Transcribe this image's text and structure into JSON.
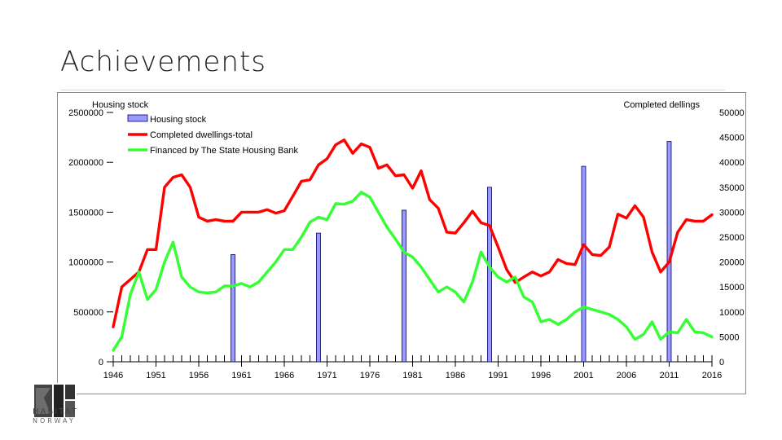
{
  "slide": {
    "title": "Achievements"
  },
  "logo": {
    "line1": "HABITAT",
    "line2": "NORWAY"
  },
  "chart_data": {
    "type": "bar+line",
    "left_axis_title": "Housing stock",
    "right_axis_title": "Completed dellings",
    "left_ylim": [
      0,
      2500000
    ],
    "right_ylim": [
      0,
      50000
    ],
    "left_ticks": [
      "0",
      "500000",
      "1000000",
      "1500000",
      "2000000",
      "2500000"
    ],
    "right_ticks": [
      "0",
      "5000",
      "10000",
      "15000",
      "20000",
      "25000",
      "30000",
      "35000",
      "40000",
      "45000",
      "50000"
    ],
    "x_tick_labels": [
      "1946",
      "1951",
      "1956",
      "1961",
      "1966",
      "1971",
      "1976",
      "1981",
      "1986",
      "1991",
      "1996",
      "2001",
      "2006",
      "2011",
      "2016"
    ],
    "xlim": [
      1946,
      2016
    ],
    "legend": [
      {
        "name": "Housing stock",
        "color": "#9999ff",
        "kind": "bar"
      },
      {
        "name": "Completed dwellings-total",
        "color": "#ff0000",
        "kind": "line"
      },
      {
        "name": "Financed by The State Housing Bank",
        "color": "#33ff33",
        "kind": "line"
      }
    ],
    "bars": {
      "name": "Housing stock",
      "x": [
        1960,
        1970,
        1980,
        1990,
        2001,
        2011
      ],
      "values": [
        1075000,
        1290000,
        1520000,
        1750000,
        1960000,
        2210000
      ]
    },
    "series": [
      {
        "name": "Completed dwellings-total",
        "color": "#ff0000",
        "x": [
          1946,
          1947,
          1948,
          1949,
          1950,
          1951,
          1952,
          1953,
          1954,
          1955,
          1956,
          1957,
          1958,
          1959,
          1960,
          1961,
          1962,
          1963,
          1964,
          1965,
          1966,
          1967,
          1968,
          1969,
          1970,
          1971,
          1972,
          1973,
          1974,
          1975,
          1976,
          1977,
          1978,
          1979,
          1980,
          1981,
          1982,
          1983,
          1984,
          1985,
          1986,
          1987,
          1988,
          1989,
          1990,
          1991,
          1992,
          1993,
          1994,
          1995,
          1996,
          1997,
          1998,
          1999,
          2000,
          2001,
          2002,
          2003,
          2004,
          2005,
          2006,
          2007,
          2008,
          2009,
          2010,
          2011,
          2012,
          2013,
          2014,
          2015,
          2016
        ],
        "values": [
          7000,
          15000,
          16500,
          18000,
          22500,
          22500,
          35000,
          37000,
          37500,
          35000,
          29000,
          28200,
          28500,
          28200,
          28200,
          30000,
          30000,
          30000,
          30500,
          29800,
          30300,
          33200,
          36200,
          36500,
          39500,
          40700,
          43500,
          44500,
          41800,
          43700,
          43000,
          38800,
          39500,
          37300,
          37500,
          34800,
          38300,
          32500,
          30800,
          26000,
          25800,
          27900,
          30200,
          27900,
          27300,
          23000,
          18500,
          15900,
          17000,
          18000,
          17200,
          18000,
          20500,
          19700,
          19500,
          23500,
          21500,
          21300,
          23000,
          29600,
          28800,
          31300,
          29000,
          22000,
          18000,
          20000,
          26000,
          28500,
          28200,
          28200,
          29500
        ]
      },
      {
        "name": "Financed by The State Housing Bank",
        "color": "#33ff33",
        "x": [
          1946,
          1947,
          1948,
          1949,
          1950,
          1951,
          1952,
          1953,
          1954,
          1955,
          1956,
          1957,
          1958,
          1959,
          1960,
          1961,
          1962,
          1963,
          1964,
          1965,
          1966,
          1967,
          1968,
          1969,
          1970,
          1971,
          1972,
          1973,
          1974,
          1975,
          1976,
          1977,
          1978,
          1979,
          1980,
          1981,
          1982,
          1983,
          1984,
          1985,
          1986,
          1987,
          1988,
          1989,
          1990,
          1991,
          1992,
          1993,
          1994,
          1995,
          1996,
          1997,
          1998,
          1999,
          2000,
          2001,
          2002,
          2003,
          2004,
          2005,
          2006,
          2007,
          2008,
          2009,
          2010,
          2011,
          2012,
          2013,
          2014,
          2015,
          2016
        ],
        "values": [
          2300,
          5000,
          13500,
          18000,
          12500,
          14500,
          20000,
          24000,
          17000,
          15000,
          14000,
          13800,
          14000,
          15200,
          15200,
          15700,
          15000,
          16000,
          18000,
          20000,
          22500,
          22500,
          25000,
          28000,
          29000,
          28500,
          31700,
          31600,
          32200,
          34000,
          33000,
          30000,
          27000,
          24600,
          22000,
          21000,
          19000,
          16500,
          14000,
          15000,
          14000,
          12000,
          16000,
          22000,
          19000,
          17000,
          16000,
          17000,
          13000,
          12000,
          8000,
          8500,
          7500,
          8500,
          10000,
          11000,
          10500,
          10000,
          9500,
          8500,
          7000,
          4500,
          5500,
          8000,
          4500,
          6000,
          5800,
          8500,
          6000,
          5800,
          5000
        ]
      }
    ]
  }
}
